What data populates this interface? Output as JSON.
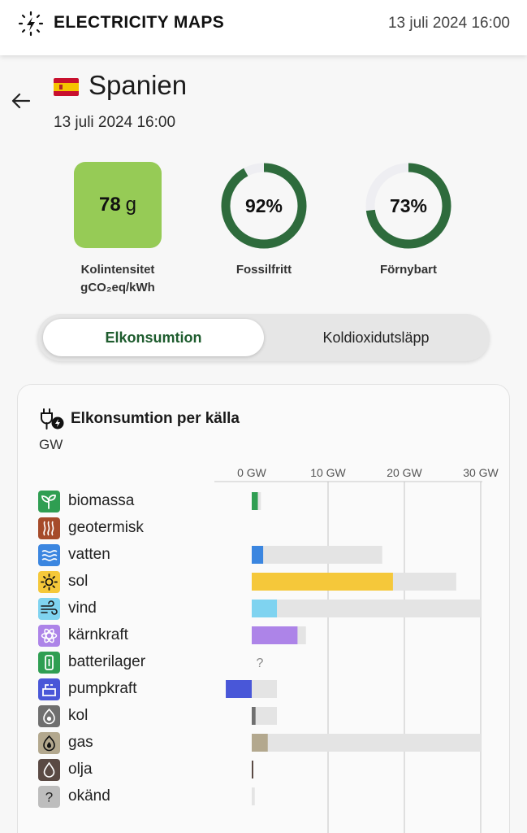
{
  "header": {
    "brand": "ELECTRICITY MAPS",
    "datetime": "13 juli 2024 16:00",
    "logo_icon": "lightning-bolt-icon"
  },
  "zone": {
    "name": "Spanien",
    "datetime": "13 juli 2024 16:00",
    "flag_icon": "spain-flag-icon"
  },
  "kpis": {
    "carbon": {
      "value": "78",
      "unit": "g",
      "label_line1": "Kolintensitet",
      "label_line2": "gCO₂eq/kWh",
      "color": "#96cb56"
    },
    "fossil_free": {
      "value": "92%",
      "label": "Fossilfritt",
      "fraction": 0.92
    },
    "renewable": {
      "value": "73%",
      "label": "Förnybart",
      "fraction": 0.73
    },
    "ring_color": "#2e6b3c",
    "ring_track_color": "#eeeef2"
  },
  "toggle": {
    "active_label": "Elkonsumtion",
    "inactive_label": "Koldioxidutsläpp"
  },
  "breakdown": {
    "title": "Elkonsumtion per källa",
    "unit": "GW",
    "title_icon": "plug-lightning-icon"
  },
  "chart_data": {
    "type": "bar",
    "orientation": "horizontal",
    "unit": "GW",
    "xlim": [
      -3.4,
      30
    ],
    "ticks": [
      {
        "value": 0,
        "label": "0 GW"
      },
      {
        "value": 10,
        "label": "10 GW"
      },
      {
        "value": 20,
        "label": "20 GW"
      },
      {
        "value": 30,
        "label": "30 GW"
      }
    ],
    "grid": true,
    "series": [
      {
        "name": "produktion",
        "color_note": "per källa"
      },
      {
        "name": "kapacitet",
        "color": "#e4e4e4"
      }
    ],
    "sources": [
      {
        "label": "biomassa",
        "icon": "sprout-icon",
        "color": "#2f9e52",
        "value": 0.8,
        "capacity": 1.2
      },
      {
        "label": "geotermisk",
        "icon": "heat-waves-icon",
        "color": "#a64b2a",
        "value": 0,
        "capacity": 0
      },
      {
        "label": "vatten",
        "icon": "water-waves-icon",
        "color": "#3b86e0",
        "value": 1.5,
        "capacity": 17.1
      },
      {
        "label": "sol",
        "icon": "sun-icon",
        "color": "#f5c83a",
        "value": 18.5,
        "capacity": 26.8
      },
      {
        "label": "vind",
        "icon": "wind-icon",
        "color": "#7fd3f0",
        "value": 3.3,
        "capacity": 30
      },
      {
        "label": "kärnkraft",
        "icon": "atom-icon",
        "color": "#ad84e8",
        "value": 6,
        "capacity": 7.1
      },
      {
        "label": "batterilager",
        "icon": "battery-icon",
        "color": "#2f9e52",
        "value": null,
        "capacity": null,
        "missing_marker": "?"
      },
      {
        "label": "pumpkraft",
        "icon": "pump-storage-icon",
        "color": "#4957d8",
        "value": -3.4,
        "capacity": 3.3
      },
      {
        "label": "kol",
        "icon": "coal-icon",
        "color": "#6f6f6f",
        "value": 0.5,
        "capacity": 3.3
      },
      {
        "label": "gas",
        "icon": "gas-flame-icon",
        "color": "#b3a88e",
        "value": 2.1,
        "capacity": 30
      },
      {
        "label": "olja",
        "icon": "oil-drop-icon",
        "color": "#5a4a44",
        "value": 0.15,
        "capacity": 0.15
      },
      {
        "label": "okänd",
        "icon": "question-icon",
        "color": "#bdbdbd",
        "value": 0,
        "capacity": 0.4
      }
    ]
  }
}
